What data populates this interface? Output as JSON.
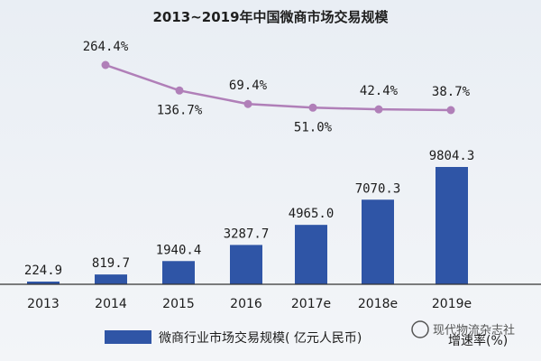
{
  "chart_data": {
    "type": "bar",
    "title": "2013~2019年中国微商市场交易规模",
    "categories": [
      "2013",
      "2014",
      "2015",
      "2016",
      "2017e",
      "2018e",
      "2019e"
    ],
    "series": [
      {
        "name": "微商行业市场交易规模（亿元人民币）",
        "type": "bar",
        "color": "#2f55a6",
        "values": [
          224.9,
          819.7,
          1940.4,
          3287.7,
          4965.0,
          7070.3,
          9804.3
        ],
        "labels": [
          "224.9",
          "819.7",
          "1940.4",
          "3287.7",
          "4965.0",
          "7070.3",
          "9804.3"
        ]
      },
      {
        "name": "增速率(%)",
        "type": "line",
        "color": "#b07fb8",
        "x": [
          "2014",
          "2015",
          "2016",
          "2017e",
          "2018e",
          "2019e"
        ],
        "values": [
          264.4,
          136.7,
          69.4,
          51.0,
          42.4,
          38.7
        ],
        "labels": [
          "264.4%",
          "136.7%",
          "69.4%",
          "51.0%",
          "42.4%",
          "38.7%"
        ]
      }
    ],
    "legend": {
      "placement": "bottom",
      "bar_entry": "微商行业市场交易规模( 亿元人民币)",
      "line_entry": "增速率(%)"
    },
    "grid": false
  },
  "watermark": "现代物流杂志社"
}
